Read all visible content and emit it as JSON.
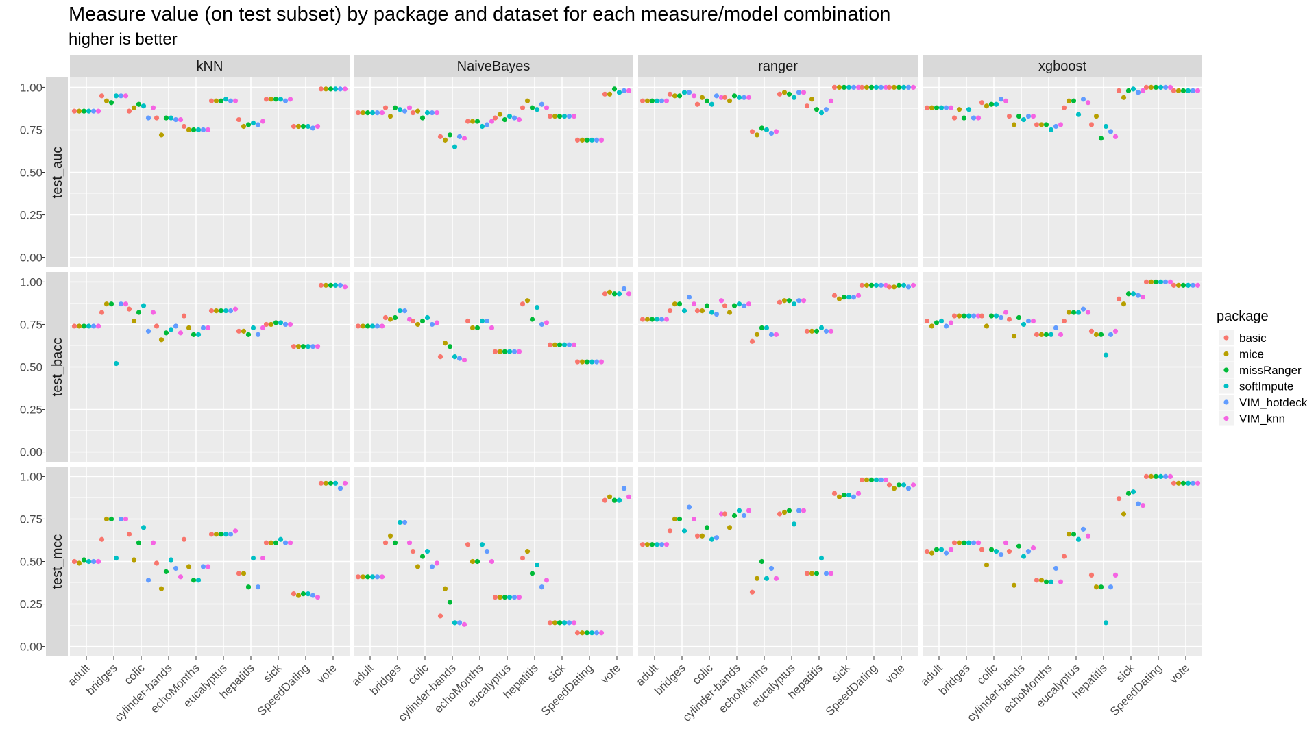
{
  "title": "Measure value (on test subset) by package and dataset for each measure/model combination",
  "subtitle": "higher is better",
  "chart_data": {
    "type": "scatter",
    "title": "Measure value (on test subset) by package and dataset for each measure/model combination",
    "subtitle": "higher is better",
    "facet_columns": [
      "kNN",
      "NaiveBayes",
      "ranger",
      "xgboost"
    ],
    "facet_rows": [
      "test_auc",
      "test_bacc",
      "test_mcc"
    ],
    "categories": [
      "adult",
      "bridges",
      "colic",
      "cylinder-bands",
      "echoMonths",
      "eucalyptus",
      "hepatitis",
      "sick",
      "SpeedDating",
      "vote"
    ],
    "ylim": [
      0,
      1
    ],
    "y_ticks": [
      "0.00",
      "0.25",
      "0.50",
      "0.75",
      "1.00"
    ],
    "grid": true,
    "legend": {
      "title": "package",
      "position": "right",
      "entries": [
        "basic",
        "mice",
        "missRanger",
        "softImpute",
        "VIM_hotdeck",
        "VIM_knn"
      ],
      "colors": [
        "#F8766D",
        "#B79F00",
        "#00BA38",
        "#00BFC4",
        "#619CFF",
        "#F564E3"
      ]
    },
    "panels": {
      "test_auc": {
        "kNN": [
          [
            0.86,
            0.86,
            0.86,
            0.86,
            0.86,
            0.86
          ],
          [
            0.95,
            0.92,
            0.91,
            0.95,
            0.95,
            0.95
          ],
          [
            0.86,
            0.88,
            0.9,
            0.89,
            0.82,
            0.88
          ],
          [
            0.82,
            0.72,
            0.82,
            0.82,
            0.81,
            0.81
          ],
          [
            0.77,
            0.75,
            0.75,
            0.75,
            0.75,
            0.75
          ],
          [
            0.92,
            0.92,
            0.92,
            0.93,
            0.92,
            0.92
          ],
          [
            0.81,
            0.77,
            0.78,
            0.79,
            0.78,
            0.8
          ],
          [
            0.93,
            0.93,
            0.93,
            0.93,
            0.92,
            0.93
          ],
          [
            0.77,
            0.77,
            0.77,
            0.77,
            0.76,
            0.77
          ],
          [
            0.99,
            0.99,
            0.99,
            0.99,
            0.99,
            0.99
          ]
        ],
        "NaiveBayes": [
          [
            0.85,
            0.85,
            0.85,
            0.85,
            0.85,
            0.85
          ],
          [
            0.88,
            0.83,
            0.88,
            0.87,
            0.86,
            0.88
          ],
          [
            0.85,
            0.86,
            0.82,
            0.85,
            0.85,
            0.85
          ],
          [
            0.71,
            0.69,
            0.72,
            0.65,
            0.71,
            0.7
          ],
          [
            0.8,
            0.8,
            0.8,
            0.77,
            0.78,
            0.8
          ],
          [
            0.82,
            0.84,
            0.81,
            0.83,
            0.82,
            0.81
          ],
          [
            0.88,
            0.92,
            0.88,
            0.87,
            0.9,
            0.88
          ],
          [
            0.83,
            0.83,
            0.83,
            0.83,
            0.83,
            0.83
          ],
          [
            0.69,
            0.69,
            0.69,
            0.69,
            0.69,
            0.69
          ],
          [
            0.96,
            0.96,
            0.99,
            0.97,
            0.98,
            0.98
          ]
        ],
        "ranger": [
          [
            0.92,
            0.92,
            0.92,
            0.92,
            0.92,
            0.92
          ],
          [
            0.96,
            0.95,
            0.95,
            0.97,
            0.97,
            0.95
          ],
          [
            0.9,
            0.94,
            0.92,
            0.9,
            0.95,
            0.94
          ],
          [
            0.94,
            0.92,
            0.95,
            0.94,
            0.94,
            0.94
          ],
          [
            0.74,
            0.72,
            0.76,
            0.75,
            0.73,
            0.74
          ],
          [
            0.96,
            0.97,
            0.96,
            0.94,
            0.97,
            0.97
          ],
          [
            0.89,
            0.93,
            0.87,
            0.85,
            0.87,
            0.92
          ],
          [
            1.0,
            1.0,
            1.0,
            1.0,
            1.0,
            1.0
          ],
          [
            1.0,
            1.0,
            1.0,
            1.0,
            1.0,
            1.0
          ],
          [
            1.0,
            1.0,
            1.0,
            1.0,
            1.0,
            1.0
          ]
        ],
        "xgboost": [
          [
            0.88,
            0.88,
            0.88,
            0.88,
            0.88,
            0.88
          ],
          [
            0.82,
            0.87,
            0.82,
            0.87,
            0.82,
            0.82
          ],
          [
            0.91,
            0.89,
            0.9,
            0.9,
            0.93,
            0.92
          ],
          [
            0.83,
            0.78,
            0.83,
            0.81,
            0.83,
            0.83
          ],
          [
            0.78,
            0.78,
            0.78,
            0.75,
            0.77,
            0.78
          ],
          [
            0.88,
            0.92,
            0.92,
            0.84,
            0.93,
            0.91
          ],
          [
            0.78,
            0.83,
            0.7,
            0.77,
            0.74,
            0.71
          ],
          [
            0.98,
            0.94,
            0.98,
            0.99,
            0.97,
            0.98
          ],
          [
            1.0,
            1.0,
            1.0,
            1.0,
            1.0,
            1.0
          ],
          [
            0.98,
            0.98,
            0.98,
            0.98,
            0.98,
            0.98
          ]
        ]
      },
      "test_bacc": {
        "kNN": [
          [
            0.74,
            0.74,
            0.74,
            0.74,
            0.74,
            0.74
          ],
          [
            0.82,
            0.87,
            0.87,
            0.52,
            0.87,
            0.87
          ],
          [
            0.84,
            0.77,
            0.82,
            0.86,
            0.71,
            0.82
          ],
          [
            0.74,
            0.66,
            0.7,
            0.72,
            0.74,
            0.7
          ],
          [
            0.8,
            0.73,
            0.69,
            0.69,
            0.73,
            0.73
          ],
          [
            0.83,
            0.83,
            0.83,
            0.83,
            0.83,
            0.84
          ],
          [
            0.71,
            0.71,
            0.69,
            0.73,
            0.69,
            0.73
          ],
          [
            0.75,
            0.75,
            0.76,
            0.76,
            0.75,
            0.75
          ],
          [
            0.62,
            0.62,
            0.62,
            0.62,
            0.62,
            0.62
          ],
          [
            0.98,
            0.98,
            0.98,
            0.98,
            0.98,
            0.97
          ]
        ],
        "NaiveBayes": [
          [
            0.74,
            0.74,
            0.74,
            0.74,
            0.74,
            0.74
          ],
          [
            0.79,
            0.78,
            0.79,
            0.83,
            0.83,
            0.78
          ],
          [
            0.77,
            0.75,
            0.77,
            0.79,
            0.75,
            0.76
          ],
          [
            0.56,
            0.64,
            0.62,
            0.56,
            0.55,
            0.54
          ],
          [
            0.77,
            0.73,
            0.73,
            0.77,
            0.77,
            0.73
          ],
          [
            0.59,
            0.59,
            0.59,
            0.59,
            0.59,
            0.59
          ],
          [
            0.87,
            0.89,
            0.78,
            0.85,
            0.75,
            0.76
          ],
          [
            0.63,
            0.63,
            0.63,
            0.63,
            0.63,
            0.63
          ],
          [
            0.53,
            0.53,
            0.53,
            0.53,
            0.53,
            0.53
          ],
          [
            0.93,
            0.94,
            0.93,
            0.93,
            0.96,
            0.93
          ]
        ],
        "ranger": [
          [
            0.78,
            0.78,
            0.78,
            0.78,
            0.78,
            0.78
          ],
          [
            0.83,
            0.87,
            0.87,
            0.83,
            0.91,
            0.87
          ],
          [
            0.83,
            0.83,
            0.86,
            0.82,
            0.81,
            0.89
          ],
          [
            0.86,
            0.82,
            0.86,
            0.87,
            0.86,
            0.87
          ],
          [
            0.65,
            0.69,
            0.73,
            0.73,
            0.69,
            0.69
          ],
          [
            0.88,
            0.89,
            0.89,
            0.87,
            0.89,
            0.89
          ],
          [
            0.71,
            0.71,
            0.71,
            0.73,
            0.71,
            0.71
          ],
          [
            0.92,
            0.9,
            0.91,
            0.91,
            0.91,
            0.92
          ],
          [
            0.98,
            0.98,
            0.98,
            0.98,
            0.98,
            0.98
          ],
          [
            0.97,
            0.97,
            0.98,
            0.98,
            0.97,
            0.98
          ]
        ],
        "xgboost": [
          [
            0.77,
            0.74,
            0.76,
            0.77,
            0.74,
            0.76
          ],
          [
            0.8,
            0.8,
            0.8,
            0.8,
            0.8,
            0.8
          ],
          [
            0.8,
            0.74,
            0.8,
            0.8,
            0.79,
            0.82
          ],
          [
            0.78,
            0.68,
            0.79,
            0.75,
            0.77,
            0.77
          ],
          [
            0.69,
            0.69,
            0.69,
            0.69,
            0.73,
            0.69
          ],
          [
            0.77,
            0.82,
            0.82,
            0.82,
            0.84,
            0.82
          ],
          [
            0.71,
            0.69,
            0.69,
            0.57,
            0.69,
            0.71
          ],
          [
            0.9,
            0.87,
            0.93,
            0.93,
            0.92,
            0.91
          ],
          [
            1.0,
            1.0,
            1.0,
            1.0,
            1.0,
            1.0
          ],
          [
            0.98,
            0.98,
            0.98,
            0.98,
            0.98,
            0.98
          ]
        ]
      },
      "test_mcc": {
        "kNN": [
          [
            0.5,
            0.49,
            0.51,
            0.5,
            0.5,
            0.5
          ],
          [
            0.63,
            0.75,
            0.75,
            0.52,
            0.75,
            0.75
          ],
          [
            0.66,
            0.51,
            0.61,
            0.7,
            0.39,
            0.61
          ],
          [
            0.49,
            0.34,
            0.44,
            0.51,
            0.46,
            0.41
          ],
          [
            0.63,
            0.47,
            0.39,
            0.39,
            0.47,
            0.47
          ],
          [
            0.66,
            0.66,
            0.66,
            0.66,
            0.66,
            0.68
          ],
          [
            0.43,
            0.43,
            0.35,
            0.52,
            0.35,
            0.52
          ],
          [
            0.61,
            0.61,
            0.61,
            0.63,
            0.61,
            0.61
          ],
          [
            0.31,
            0.3,
            0.31,
            0.31,
            0.3,
            0.29
          ],
          [
            0.96,
            0.96,
            0.96,
            0.96,
            0.93,
            0.96
          ]
        ],
        "NaiveBayes": [
          [
            0.41,
            0.41,
            0.41,
            0.41,
            0.41,
            0.41
          ],
          [
            0.61,
            0.65,
            0.61,
            0.73,
            0.73,
            0.61
          ],
          [
            0.56,
            0.47,
            0.53,
            0.56,
            0.47,
            0.49
          ],
          [
            0.18,
            0.34,
            0.26,
            0.14,
            0.14,
            0.13
          ],
          [
            0.6,
            0.5,
            0.5,
            0.6,
            0.56,
            0.5
          ],
          [
            0.29,
            0.29,
            0.29,
            0.29,
            0.29,
            0.29
          ],
          [
            0.52,
            0.56,
            0.43,
            0.48,
            0.35,
            0.39
          ],
          [
            0.14,
            0.14,
            0.14,
            0.14,
            0.14,
            0.14
          ],
          [
            0.08,
            0.08,
            0.08,
            0.08,
            0.08,
            0.08
          ],
          [
            0.86,
            0.88,
            0.86,
            0.86,
            0.93,
            0.88
          ]
        ],
        "ranger": [
          [
            0.6,
            0.6,
            0.6,
            0.6,
            0.6,
            0.6
          ],
          [
            0.68,
            0.75,
            0.75,
            0.68,
            0.82,
            0.75
          ],
          [
            0.65,
            0.65,
            0.7,
            0.63,
            0.64,
            0.78
          ],
          [
            0.78,
            0.7,
            0.77,
            0.8,
            0.77,
            0.8
          ],
          [
            0.32,
            0.4,
            0.5,
            0.4,
            0.46,
            0.4
          ],
          [
            0.78,
            0.79,
            0.8,
            0.72,
            0.8,
            0.8
          ],
          [
            0.43,
            0.43,
            0.43,
            0.52,
            0.43,
            0.43
          ],
          [
            0.9,
            0.88,
            0.89,
            0.89,
            0.88,
            0.9
          ],
          [
            0.98,
            0.98,
            0.98,
            0.98,
            0.98,
            0.98
          ],
          [
            0.95,
            0.93,
            0.95,
            0.95,
            0.93,
            0.95
          ]
        ],
        "xgboost": [
          [
            0.56,
            0.55,
            0.57,
            0.57,
            0.55,
            0.57
          ],
          [
            0.61,
            0.61,
            0.61,
            0.61,
            0.61,
            0.61
          ],
          [
            0.57,
            0.48,
            0.57,
            0.56,
            0.54,
            0.61
          ],
          [
            0.56,
            0.36,
            0.59,
            0.53,
            0.56,
            0.58
          ],
          [
            0.39,
            0.39,
            0.38,
            0.38,
            0.46,
            0.38
          ],
          [
            0.53,
            0.66,
            0.66,
            0.63,
            0.69,
            0.65
          ],
          [
            0.42,
            0.35,
            0.35,
            0.14,
            0.35,
            0.42
          ],
          [
            0.87,
            0.78,
            0.9,
            0.91,
            0.84,
            0.83
          ],
          [
            1.0,
            1.0,
            1.0,
            1.0,
            1.0,
            1.0
          ],
          [
            0.96,
            0.96,
            0.96,
            0.96,
            0.96,
            0.96
          ]
        ]
      }
    }
  }
}
